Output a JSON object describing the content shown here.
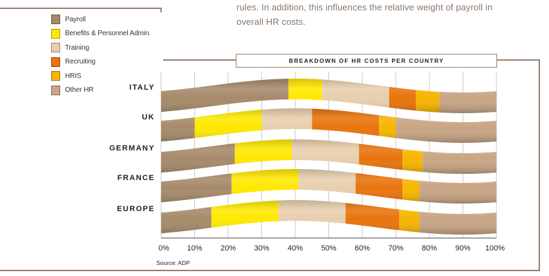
{
  "intro_text": {
    "line1": "rules. In  addition, this influences the relative weight of payroll in",
    "line2": "overall HR costs."
  },
  "colors": {
    "frame": "#9a8070",
    "payroll": "#a68a6a",
    "benefits": "#ffe800",
    "training": "#e8cfae",
    "recruiting": "#e8740c",
    "hris": "#f7b500",
    "other_hr": "#c9a585"
  },
  "chart_data": {
    "type": "bar",
    "orientation": "horizontal",
    "stacked": true,
    "title": "BREAKDOWN OF HR COSTS PER COUNTRY",
    "categories": [
      "ITALY",
      "UK",
      "GERMANY",
      "FRANCE",
      "EUROPE"
    ],
    "x_ticks": [
      "0%",
      "10%",
      "20%",
      "30%",
      "40%",
      "50%",
      "60%",
      "70%",
      "80%",
      "90%",
      "100%"
    ],
    "xlim": [
      0,
      100
    ],
    "grid": true,
    "legend_position": "top-left",
    "series": [
      {
        "name": "Payroll",
        "color": "#a68a6a",
        "values": [
          38,
          10,
          22,
          21,
          15
        ]
      },
      {
        "name": "Benefits & Personnel Admin.",
        "color": "#ffe800",
        "values": [
          10,
          20,
          17,
          20,
          20
        ]
      },
      {
        "name": "Training",
        "color": "#e8cfae",
        "values": [
          20,
          15,
          20,
          17,
          20
        ]
      },
      {
        "name": "Recruiting",
        "color": "#e8740c",
        "values": [
          8,
          20,
          13,
          14,
          16
        ]
      },
      {
        "name": "HRIS",
        "color": "#f7b500",
        "values": [
          7,
          5,
          6,
          5,
          6
        ]
      },
      {
        "name": "Other HR",
        "color": "#c9a585",
        "values": [
          17,
          30,
          22,
          23,
          23
        ]
      }
    ],
    "source": "Source: ADP"
  }
}
